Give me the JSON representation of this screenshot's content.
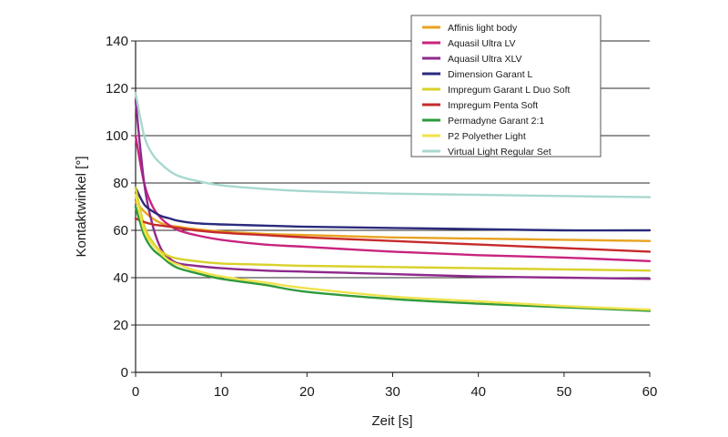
{
  "chart_data": {
    "type": "line",
    "title": "",
    "xlabel": "Zeit [s]",
    "ylabel": "Kontaktwinkel [°]",
    "xlim": [
      0,
      60
    ],
    "ylim": [
      0,
      140
    ],
    "x_ticks": [
      0,
      10,
      20,
      30,
      40,
      50,
      60
    ],
    "y_ticks": [
      0,
      20,
      40,
      60,
      80,
      100,
      120,
      140
    ],
    "grid": "horizontal",
    "legend_position": "top-right",
    "x": [
      0,
      1,
      2,
      3,
      4,
      5,
      7,
      10,
      15,
      20,
      30,
      40,
      50,
      60
    ],
    "series": [
      {
        "name": "Affinis light body",
        "color": "#e8a321",
        "values": [
          72,
          68,
          65,
          63,
          62,
          61.5,
          60.5,
          59.5,
          58.5,
          58,
          57,
          56.5,
          56,
          55.5
        ]
      },
      {
        "name": "Aquasil Ultra LV",
        "color": "#c8247f",
        "values": [
          100,
          80,
          70,
          65,
          62,
          60,
          58,
          56,
          54,
          53,
          51,
          49.5,
          48.5,
          47
        ]
      },
      {
        "name": "Aquasil Ultra XLV",
        "color": "#8e2a8c",
        "values": [
          115,
          80,
          62,
          52,
          48,
          46,
          45,
          44,
          43,
          42.5,
          41.5,
          40.5,
          40,
          39.5
        ]
      },
      {
        "name": "Dimension Garant L",
        "color": "#2b2a7c",
        "values": [
          78,
          71,
          68,
          66,
          65,
          64,
          63,
          62.5,
          62,
          61.5,
          61,
          60.5,
          60,
          60
        ]
      },
      {
        "name": "Impregum Garant L Duo Soft",
        "color": "#d9d12a",
        "values": [
          78,
          62,
          55,
          51,
          49,
          48,
          47,
          46,
          45.5,
          45,
          44.5,
          44,
          43.5,
          43
        ]
      },
      {
        "name": "Impregum Penta Soft",
        "color": "#c62b2b",
        "values": [
          65,
          63.5,
          62.5,
          62,
          61.5,
          61,
          60,
          59,
          58,
          57,
          55.5,
          54,
          52.5,
          51
        ]
      },
      {
        "name": "Permadyne Garant 2:1",
        "color": "#2e9a3b",
        "values": [
          70,
          58,
          52,
          49,
          46,
          44,
          42,
          39.5,
          37,
          34,
          31,
          29,
          27.5,
          26
        ]
      },
      {
        "name": "P2 Polyether Light",
        "color": "#efe24a",
        "values": [
          75,
          60,
          54,
          50,
          47,
          45.5,
          43,
          40.5,
          38,
          35.5,
          32,
          30,
          28,
          26.5
        ]
      },
      {
        "name": "Virtual Light Regular Set",
        "color": "#a8d8d0",
        "values": [
          118,
          100,
          92,
          88,
          85,
          83,
          81,
          79,
          77.5,
          76.5,
          75.5,
          75,
          74.5,
          74
        ]
      }
    ]
  }
}
